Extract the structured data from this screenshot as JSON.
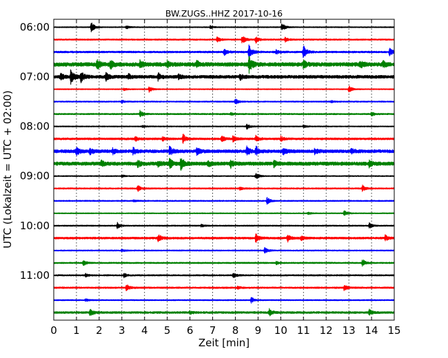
{
  "chart_data": {
    "type": "line",
    "title": "BW.ZUGS..HHZ 2017-10-16",
    "xlabel": "Zeit  [min]",
    "ylabel": "UTC (Lokalzeit = UTC + 02:00)",
    "xlim": [
      0,
      15
    ],
    "x_ticks": [
      0,
      1,
      2,
      3,
      4,
      5,
      6,
      7,
      8,
      9,
      10,
      11,
      12,
      13,
      14,
      15
    ],
    "x_grid": "dotted vertical at every minute",
    "y_tick_labels": [
      "06:00",
      "07:00",
      "08:00",
      "09:00",
      "10:00",
      "11:00"
    ],
    "trace_interval_minutes": 15,
    "color_cycle": [
      "#000000",
      "#ff0000",
      "#0000ff",
      "#008000"
    ],
    "series": [
      {
        "start": "06:00",
        "color": "#000000",
        "events": [
          [
            1.65,
            0.55
          ],
          [
            10.05,
            0.45
          ],
          [
            3.2,
            0.15
          ],
          [
            6.9,
            0.15
          ]
        ],
        "noise": 0.05
      },
      {
        "start": "06:15",
        "color": "#ff0000",
        "events": [
          [
            7.2,
            0.25
          ],
          [
            8.3,
            0.45
          ],
          [
            8.9,
            0.35
          ],
          [
            10.2,
            0.25
          ]
        ],
        "noise": 0.07
      },
      {
        "start": "06:30",
        "color": "#0000ff",
        "events": [
          [
            7.5,
            0.35
          ],
          [
            8.6,
            0.75
          ],
          [
            11.0,
            0.7
          ],
          [
            14.8,
            0.45
          ],
          [
            9.8,
            0.2
          ]
        ],
        "noise": 0.09
      },
      {
        "start": "06:45",
        "color": "#008000",
        "events": [
          [
            1.9,
            0.45
          ],
          [
            2.5,
            0.4
          ],
          [
            3.8,
            0.4
          ],
          [
            8.6,
            0.8
          ],
          [
            5.0,
            0.3
          ],
          [
            6.3,
            0.3
          ],
          [
            11.0,
            0.35
          ],
          [
            13.5,
            0.35
          ],
          [
            14.5,
            0.3
          ]
        ],
        "noise": 0.2
      },
      {
        "start": "07:00",
        "color": "#000000",
        "events": [
          [
            0.75,
            0.75
          ],
          [
            1.2,
            0.5
          ],
          [
            0.3,
            0.3
          ],
          [
            2.3,
            0.35
          ],
          [
            3.3,
            0.25
          ],
          [
            4.6,
            0.35
          ],
          [
            8.2,
            0.3
          ],
          [
            5.5,
            0.2
          ]
        ],
        "noise": 0.16
      },
      {
        "start": "07:15",
        "color": "#ff0000",
        "events": [
          [
            4.2,
            0.3
          ],
          [
            13.0,
            0.35
          ],
          [
            3.1,
            0.12
          ]
        ],
        "noise": 0.05
      },
      {
        "start": "07:30",
        "color": "#0000ff",
        "events": [
          [
            8.0,
            0.3
          ],
          [
            3.0,
            0.15
          ],
          [
            12.2,
            0.12
          ]
        ],
        "noise": 0.06
      },
      {
        "start": "07:45",
        "color": "#008000",
        "events": [
          [
            3.8,
            0.35
          ],
          [
            14.0,
            0.2
          ],
          [
            7.8,
            0.12
          ]
        ],
        "noise": 0.07
      },
      {
        "start": "08:00",
        "color": "#000000",
        "events": [
          [
            8.5,
            0.3
          ],
          [
            11.0,
            0.15
          ],
          [
            3.9,
            0.12
          ]
        ],
        "noise": 0.05
      },
      {
        "start": "08:15",
        "color": "#ff0000",
        "events": [
          [
            5.7,
            0.45
          ],
          [
            7.4,
            0.3
          ],
          [
            7.9,
            0.3
          ],
          [
            8.9,
            0.3
          ],
          [
            3.6,
            0.2
          ],
          [
            10.0,
            0.25
          ],
          [
            4.8,
            0.2
          ]
        ],
        "noise": 0.1
      },
      {
        "start": "08:30",
        "color": "#0000ff",
        "events": [
          [
            1.0,
            0.4
          ],
          [
            1.6,
            0.3
          ],
          [
            3.5,
            0.3
          ],
          [
            5.1,
            0.45
          ],
          [
            6.3,
            0.35
          ],
          [
            8.5,
            0.45
          ],
          [
            8.9,
            0.45
          ],
          [
            10.1,
            0.3
          ],
          [
            11.5,
            0.25
          ],
          [
            2.6,
            0.25
          ],
          [
            13.1,
            0.25
          ]
        ],
        "noise": 0.16
      },
      {
        "start": "08:45",
        "color": "#008000",
        "events": [
          [
            5.6,
            0.65
          ],
          [
            5.1,
            0.45
          ],
          [
            3.7,
            0.3
          ],
          [
            6.8,
            0.3
          ],
          [
            7.8,
            0.35
          ],
          [
            9.7,
            0.3
          ],
          [
            2.1,
            0.25
          ],
          [
            13.9,
            0.3
          ],
          [
            4.6,
            0.25
          ]
        ],
        "noise": 0.18
      },
      {
        "start": "09:00",
        "color": "#000000",
        "events": [
          [
            8.9,
            0.35
          ],
          [
            3.0,
            0.12
          ]
        ],
        "noise": 0.05
      },
      {
        "start": "09:15",
        "color": "#ff0000",
        "events": [
          [
            3.7,
            0.3
          ],
          [
            13.6,
            0.3
          ],
          [
            8.2,
            0.15
          ]
        ],
        "noise": 0.07
      },
      {
        "start": "09:30",
        "color": "#0000ff",
        "events": [
          [
            9.4,
            0.35
          ],
          [
            3.5,
            0.12
          ]
        ],
        "noise": 0.06
      },
      {
        "start": "09:45",
        "color": "#008000",
        "events": [
          [
            12.8,
            0.3
          ],
          [
            11.2,
            0.12
          ]
        ],
        "noise": 0.05
      },
      {
        "start": "10:00",
        "color": "#000000",
        "events": [
          [
            2.8,
            0.3
          ],
          [
            13.9,
            0.3
          ],
          [
            6.5,
            0.12
          ]
        ],
        "noise": 0.06
      },
      {
        "start": "10:15",
        "color": "#ff0000",
        "events": [
          [
            4.6,
            0.4
          ],
          [
            8.9,
            0.45
          ],
          [
            10.3,
            0.4
          ],
          [
            14.6,
            0.3
          ],
          [
            10.9,
            0.2
          ]
        ],
        "noise": 0.1
      },
      {
        "start": "10:30",
        "color": "#0000ff",
        "events": [
          [
            9.3,
            0.35
          ],
          [
            3.0,
            0.12
          ]
        ],
        "noise": 0.06
      },
      {
        "start": "10:45",
        "color": "#008000",
        "events": [
          [
            1.3,
            0.3
          ],
          [
            13.6,
            0.35
          ],
          [
            9.8,
            0.15
          ]
        ],
        "noise": 0.07
      },
      {
        "start": "11:00",
        "color": "#000000",
        "events": [
          [
            7.9,
            0.3
          ],
          [
            3.1,
            0.2
          ],
          [
            1.4,
            0.15
          ]
        ],
        "noise": 0.07
      },
      {
        "start": "11:15",
        "color": "#ff0000",
        "events": [
          [
            3.2,
            0.35
          ],
          [
            12.8,
            0.3
          ],
          [
            8.1,
            0.15
          ]
        ],
        "noise": 0.08
      },
      {
        "start": "11:30",
        "color": "#0000ff",
        "events": [
          [
            8.7,
            0.3
          ],
          [
            1.4,
            0.12
          ]
        ],
        "noise": 0.06
      },
      {
        "start": "11:45",
        "color": "#008000",
        "events": [
          [
            9.5,
            0.35
          ],
          [
            13.9,
            0.3
          ],
          [
            1.6,
            0.35
          ],
          [
            6.0,
            0.15
          ]
        ],
        "noise": 0.1
      }
    ]
  }
}
